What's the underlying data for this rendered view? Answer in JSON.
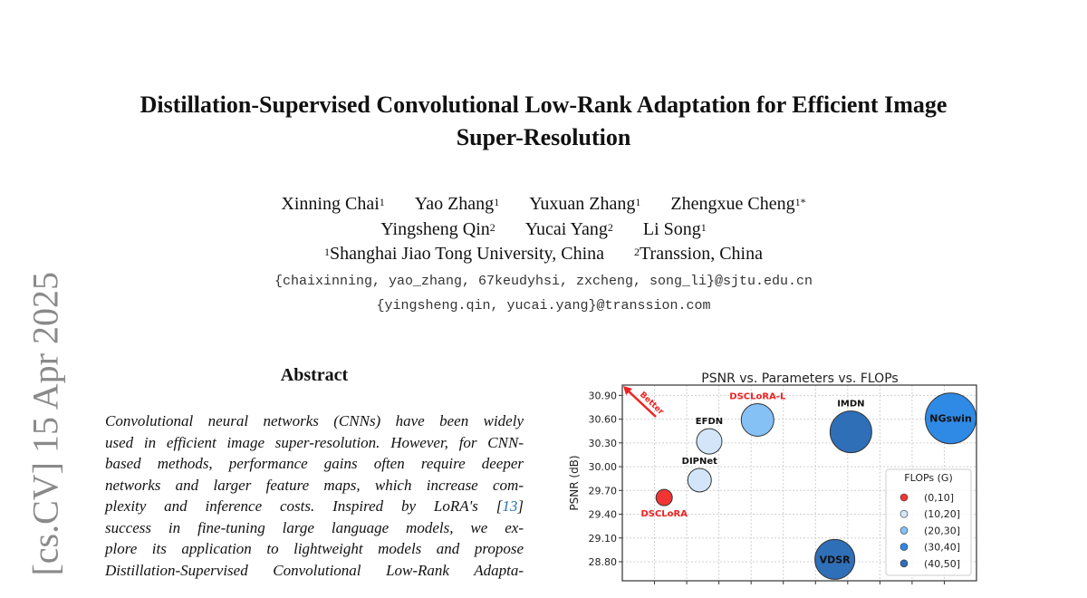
{
  "arxiv_stamp": "[cs.CV]  15 Apr 2025",
  "title": {
    "line1": "Distillation-Supervised Convolutional Low-Rank Adaptation for Efficient Image",
    "line2": "Super-Resolution"
  },
  "authors": {
    "row1": [
      {
        "name": "Xinning Chai",
        "aff": "1"
      },
      {
        "name": "Yao Zhang",
        "aff": "1"
      },
      {
        "name": "Yuxuan Zhang",
        "aff": "1"
      },
      {
        "name": "Zhengxue Cheng",
        "aff": "1*"
      }
    ],
    "row2": [
      {
        "name": "Yingsheng Qin",
        "aff": "2"
      },
      {
        "name": "Yucai Yang",
        "aff": "2"
      },
      {
        "name": "Li Song",
        "aff": "1"
      }
    ],
    "affiliations": [
      {
        "mark": "1",
        "name": "Shanghai Jiao Tong University, China"
      },
      {
        "mark": "2",
        "name": "Transsion, China"
      }
    ],
    "email1": "{chaixinning, yao_zhang, 67keudyhsi, zxcheng, song_li}@sjtu.edu.cn",
    "email2": "{yingsheng.qin, yucai.yang}@transsion.com"
  },
  "abstract": {
    "heading": "Abstract",
    "lines": [
      "Convolutional neural networks (CNNs) have been widely",
      "used in efficient image super-resolution. However, for CNN-",
      "based methods, performance gains often require deeper",
      "networks and larger feature maps, which increase com-",
      "plexity and inference costs.  Inspired by LoRA's [",
      "success in fine-tuning large language models, we ex-",
      "plore its application to lightweight models and propose",
      "Distillation-Supervised Convolutional Low-Rank Adapta-"
    ],
    "cite": "13",
    "cite_close": "]"
  },
  "chart_data": {
    "type": "scatter",
    "title": "PSNR vs. Parameters vs. FLOPs",
    "xlabel": "",
    "ylabel": "PSNR (dB)",
    "ylim": [
      28.56,
      31.03
    ],
    "xlim": [
      0.0,
      1.1
    ],
    "yticks": [
      "30.90",
      "30.60",
      "30.30",
      "30.00",
      "29.70",
      "29.40",
      "29.10",
      "28.80"
    ],
    "xticks": [
      0.1,
      0.2,
      0.3,
      0.4,
      0.5,
      0.6,
      0.7,
      0.8,
      0.9,
      1.0
    ],
    "grid": true,
    "annotation": "Better",
    "points": [
      {
        "label": "DSCLoRA",
        "x": 0.13,
        "y": 29.61,
        "flops_bin": 0,
        "size": 9,
        "label_color": "#ee2222"
      },
      {
        "label": "DIPNet",
        "x": 0.24,
        "y": 29.83,
        "flops_bin": 1,
        "size": 13,
        "label_color": "#111111"
      },
      {
        "label": "EFDN",
        "x": 0.27,
        "y": 30.32,
        "flops_bin": 1,
        "size": 14,
        "label_color": "#111111"
      },
      {
        "label": "DSCLoRA-L",
        "x": 0.42,
        "y": 30.59,
        "flops_bin": 2,
        "size": 18,
        "label_color": "#ee2222"
      },
      {
        "label": "IMDN",
        "x": 0.71,
        "y": 30.44,
        "flops_bin": 4,
        "size": 23,
        "label_color": "#111111"
      },
      {
        "label": "NGswin",
        "x": 1.02,
        "y": 30.61,
        "flops_bin": 3,
        "size": 28,
        "label_color": "#111111"
      },
      {
        "label": "VDSR",
        "x": 0.66,
        "y": 28.83,
        "flops_bin": 4,
        "size": 22,
        "label_color": "#111111"
      }
    ],
    "legend": {
      "title": "FLOPs (G)",
      "placement": "bottom-right",
      "entries": [
        {
          "label": "(0,10]",
          "color": "#f03434"
        },
        {
          "label": "(10,20]",
          "color": "#d3e6f9"
        },
        {
          "label": "(20,30]",
          "color": "#85c1f5"
        },
        {
          "label": "(30,40]",
          "color": "#2f8ae6"
        },
        {
          "label": "(40,50]",
          "color": "#2f6fb8"
        }
      ]
    }
  }
}
